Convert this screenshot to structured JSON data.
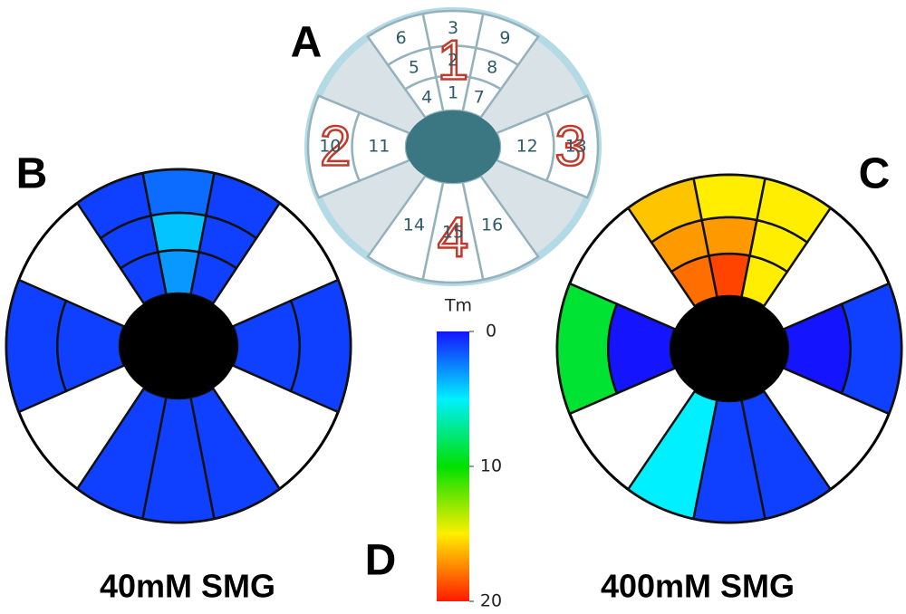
{
  "schematic": {
    "label": "A",
    "segments": [
      1,
      2,
      3,
      4,
      5,
      6,
      7,
      8,
      9,
      10,
      11,
      12,
      13,
      14,
      15,
      16
    ],
    "regions": [
      1,
      2,
      3,
      4
    ]
  },
  "maps": [
    {
      "label": "B",
      "caption": "40mM SMG",
      "values": [
        3,
        4,
        2,
        1,
        1,
        1,
        1,
        1,
        1,
        1,
        1,
        1,
        1,
        1,
        1,
        1
      ]
    },
    {
      "label": "C",
      "caption": "400mM SMG",
      "values": [
        19,
        17,
        15,
        18,
        17,
        16,
        15,
        15,
        15,
        9,
        0,
        0,
        1,
        5,
        1,
        1
      ]
    }
  ],
  "colorbar": {
    "label": "D",
    "title": "Tm",
    "lim": [
      0,
      20
    ],
    "ticks": [
      0,
      10,
      20
    ],
    "colors": [
      "#1414ff",
      "#00f0ff",
      "#00e000",
      "#ffee00",
      "#ff1a00"
    ]
  }
}
